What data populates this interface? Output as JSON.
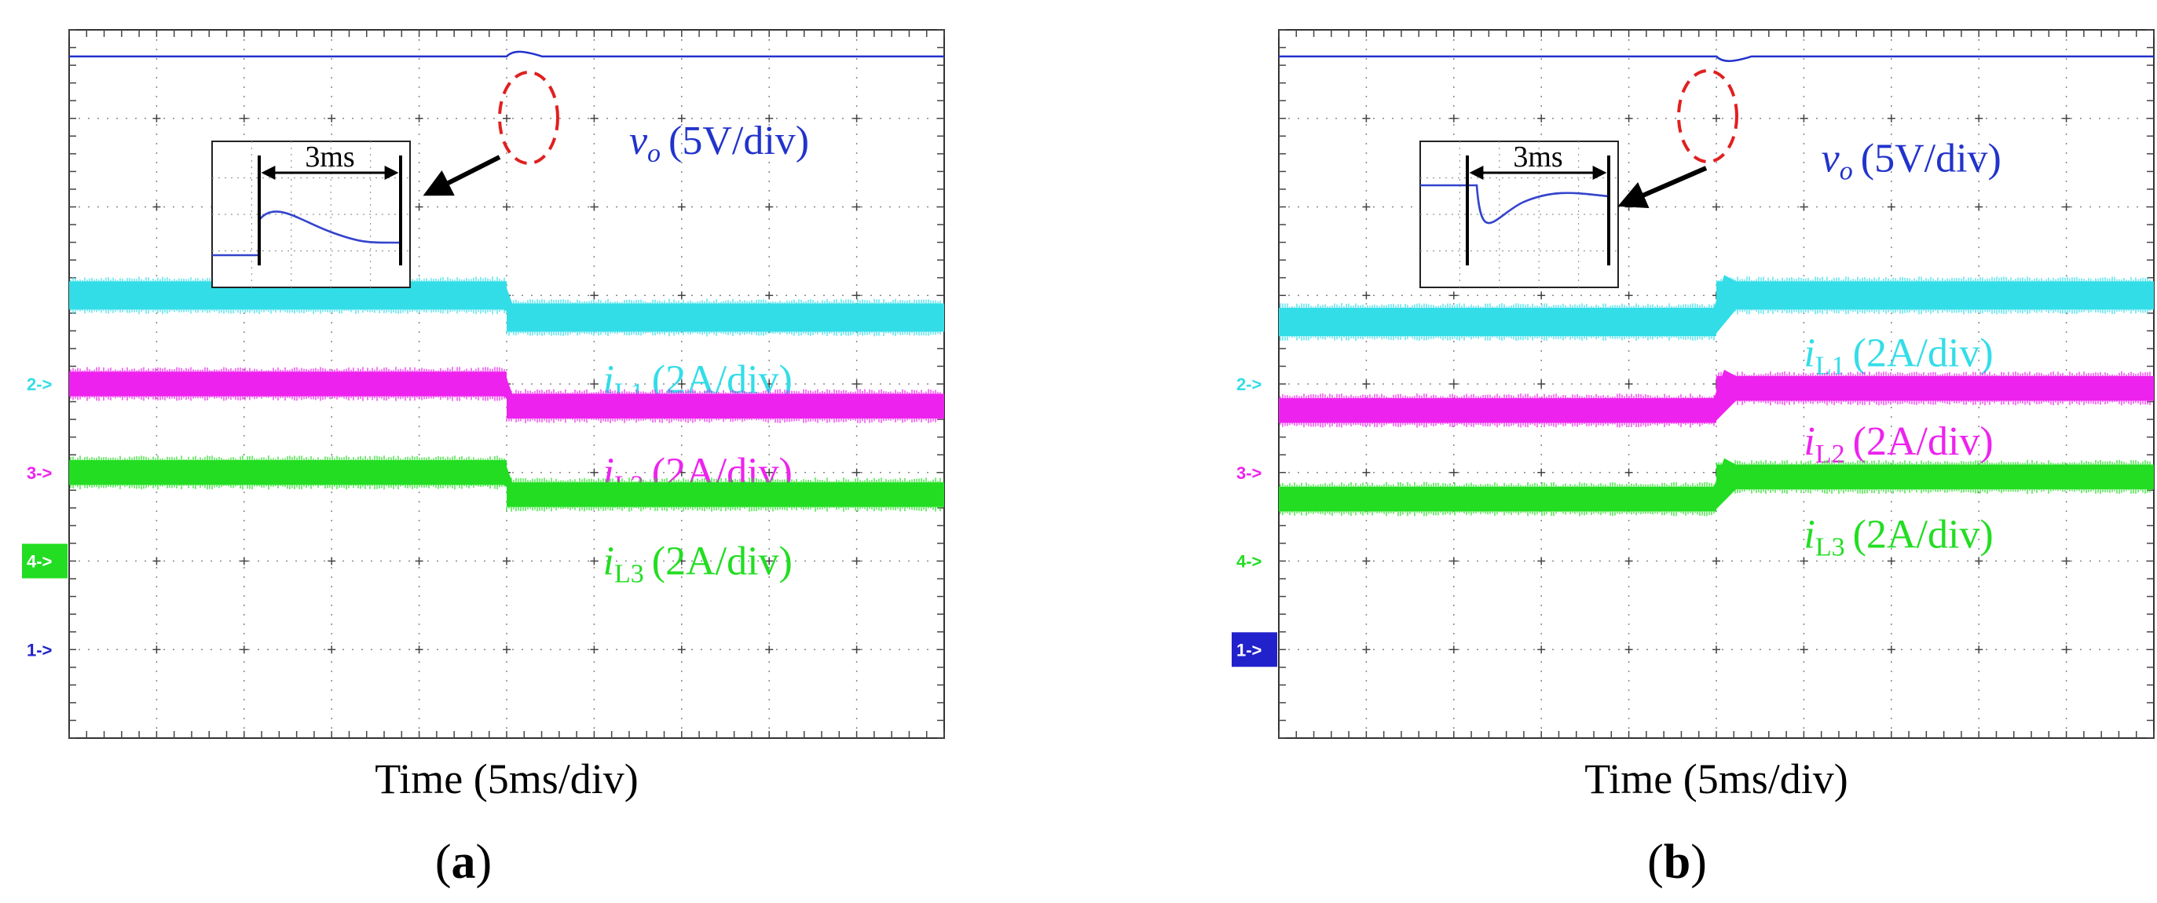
{
  "panels": [
    {
      "caption": "a",
      "xlabel": "Time (5ms/div)",
      "grid": true,
      "divisions": {
        "x": 10,
        "y": 8
      },
      "channel_markers": [
        {
          "label": "2->",
          "channel": 2,
          "color": "#33dde8",
          "filled": false,
          "level_div": 4.0
        },
        {
          "label": "3->",
          "channel": 3,
          "color": "#ee22ee",
          "filled": false,
          "level_div": 3.0
        },
        {
          "label": "4->",
          "channel": 4,
          "color": "#22dd22",
          "filled": true,
          "level_div": 2.0
        },
        {
          "label": "1->",
          "channel": 1,
          "color": "#2222cc",
          "filled": false,
          "level_div": 1.0
        }
      ],
      "traces": [
        {
          "name": "vo",
          "sub": "o",
          "scale": "(5V/div)",
          "italic": "v",
          "color": "#2233cc",
          "type": "line",
          "step_div": 5.0,
          "before_div": 7.7,
          "after_div": 7.7,
          "overshoot_div": 0.07,
          "label_pos": {
            "x_div": 6.4,
            "y_div": 6.6
          }
        },
        {
          "name": "iL1",
          "sub": "L1",
          "scale": "(2A/div)",
          "italic": "i",
          "color": "#33dde8",
          "type": "band",
          "step_div": 5.0,
          "before_div": 5.0,
          "after_div": 4.75,
          "band_div": 0.32,
          "label_pos": {
            "x_div": 6.1,
            "y_div": 3.9
          }
        },
        {
          "name": "iL2",
          "sub": "L2",
          "scale": "(2A/div)",
          "italic": "i",
          "color": "#ee22ee",
          "type": "band",
          "step_div": 5.0,
          "before_div": 4.0,
          "after_div": 3.75,
          "band_div": 0.28,
          "label_pos": {
            "x_div": 6.1,
            "y_div": 2.85
          }
        },
        {
          "name": "iL3",
          "sub": "L3",
          "scale": "(2A/div)",
          "italic": "i",
          "color": "#22dd22",
          "type": "band",
          "step_div": 5.0,
          "before_div": 3.0,
          "after_div": 2.75,
          "band_div": 0.28,
          "label_pos": {
            "x_div": 6.1,
            "y_div": 1.85
          }
        }
      ],
      "inset": {
        "label": "3ms",
        "shape": "overshoot",
        "color": "#3344cc"
      }
    },
    {
      "caption": "b",
      "xlabel": "Time (5ms/div)",
      "grid": true,
      "divisions": {
        "x": 10,
        "y": 8
      },
      "channel_markers": [
        {
          "label": "2->",
          "channel": 2,
          "color": "#33dde8",
          "filled": false,
          "level_div": 4.0
        },
        {
          "label": "3->",
          "channel": 3,
          "color": "#ee22ee",
          "filled": false,
          "level_div": 3.0
        },
        {
          "label": "4->",
          "channel": 4,
          "color": "#22dd22",
          "filled": false,
          "level_div": 2.0
        },
        {
          "label": "1->",
          "channel": 1,
          "color": "#2222cc",
          "filled": true,
          "level_div": 1.0
        }
      ],
      "traces": [
        {
          "name": "vo",
          "sub": "o",
          "scale": "(5V/div)",
          "italic": "v",
          "color": "#2233cc",
          "type": "line",
          "step_div": 5.0,
          "before_div": 7.7,
          "after_div": 7.7,
          "overshoot_div": -0.07,
          "label_pos": {
            "x_div": 6.2,
            "y_div": 6.4
          }
        },
        {
          "name": "iL1",
          "sub": "L1",
          "scale": "(2A/div)",
          "italic": "i",
          "color": "#33dde8",
          "type": "band",
          "step_div": 5.0,
          "before_div": 4.7,
          "after_div": 5.0,
          "band_div": 0.32,
          "label_pos": {
            "x_div": 6.0,
            "y_div": 4.2
          }
        },
        {
          "name": "iL2",
          "sub": "L2",
          "scale": "(2A/div)",
          "italic": "i",
          "color": "#ee22ee",
          "type": "band",
          "step_div": 5.0,
          "before_div": 3.7,
          "after_div": 3.95,
          "band_div": 0.28,
          "label_pos": {
            "x_div": 6.0,
            "y_div": 3.2
          }
        },
        {
          "name": "iL3",
          "sub": "L3",
          "scale": "(2A/div)",
          "italic": "i",
          "color": "#22dd22",
          "type": "band",
          "step_div": 5.0,
          "before_div": 2.7,
          "after_div": 2.95,
          "band_div": 0.28,
          "label_pos": {
            "x_div": 6.0,
            "y_div": 2.15
          }
        }
      ],
      "inset": {
        "label": "3ms",
        "shape": "undershoot",
        "color": "#3344cc"
      }
    }
  ]
}
